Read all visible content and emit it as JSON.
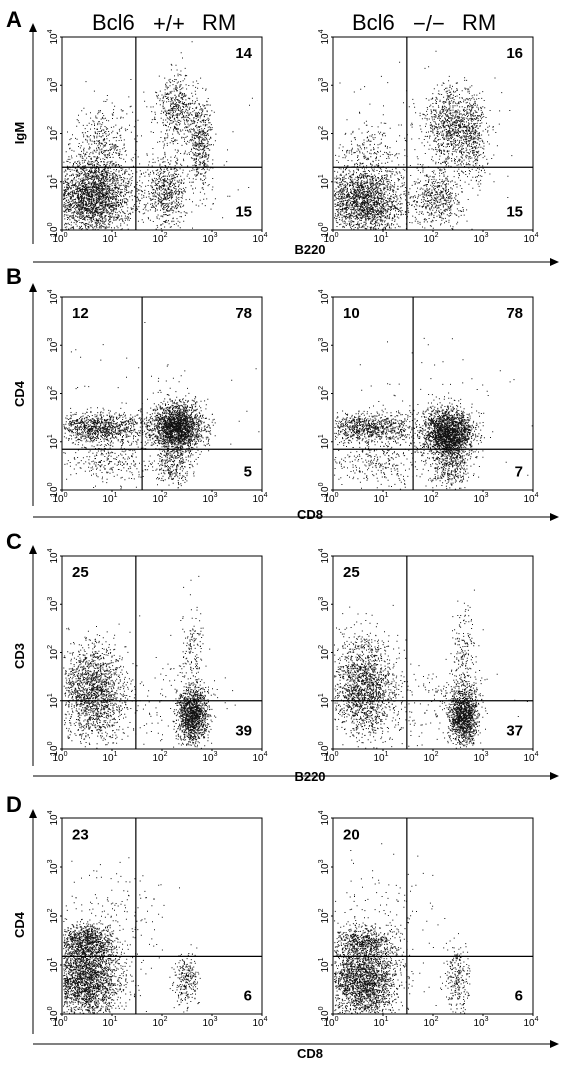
{
  "headers": {
    "left": {
      "gene": "Bcl6",
      "genotype": "+/+",
      "cell": "RM"
    },
    "right": {
      "gene": "Bcl6",
      "genotype": "−/−",
      "cell": "RM"
    }
  },
  "tick_base": "10",
  "tick_exponents": [
    "0",
    "1",
    "2",
    "3",
    "4"
  ],
  "chart_data": [
    {
      "type": "scatter",
      "panel": "A",
      "xlabel": "B220",
      "ylabel": "IgM",
      "xscale": "log",
      "yscale": "log",
      "xlim": [
        1,
        10000
      ],
      "ylim": [
        1,
        10000
      ],
      "gates": {
        "x": 30,
        "y": 20
      },
      "plots": [
        {
          "genotype": "+/+",
          "quadrants": {
            "upper_right": 14,
            "lower_right": 15
          },
          "populations": [
            {
              "cx": 4,
              "cy": 5,
              "sx": 0.4,
              "sy": 0.4,
              "n": 2600
            },
            {
              "cx": 6,
              "cy": 60,
              "sx": 0.3,
              "sy": 0.35,
              "n": 350
            },
            {
              "cx": 120,
              "cy": 6,
              "sx": 0.2,
              "sy": 0.35,
              "n": 600
            },
            {
              "cx": 200,
              "cy": 300,
              "sx": 0.2,
              "sy": 0.35,
              "n": 500
            },
            {
              "cx": 600,
              "cy": 60,
              "sx": 0.12,
              "sy": 0.45,
              "n": 450
            },
            {
              "cx": 40,
              "cy": 40,
              "sx": 1.0,
              "sy": 1.0,
              "n": 150
            }
          ]
        },
        {
          "genotype": "−/−",
          "quadrants": {
            "upper_right": 16,
            "lower_right": 15
          },
          "populations": [
            {
              "cx": 4,
              "cy": 4,
              "sx": 0.4,
              "sy": 0.35,
              "n": 2000
            },
            {
              "cx": 5,
              "cy": 40,
              "sx": 0.3,
              "sy": 0.3,
              "n": 200
            },
            {
              "cx": 120,
              "cy": 5,
              "sx": 0.25,
              "sy": 0.3,
              "n": 500
            },
            {
              "cx": 250,
              "cy": 150,
              "sx": 0.3,
              "sy": 0.4,
              "n": 900
            },
            {
              "cx": 600,
              "cy": 60,
              "sx": 0.15,
              "sy": 0.4,
              "n": 300
            },
            {
              "cx": 40,
              "cy": 40,
              "sx": 1.0,
              "sy": 1.0,
              "n": 200
            }
          ]
        }
      ]
    },
    {
      "type": "scatter",
      "panel": "B",
      "xlabel": "CD8",
      "ylabel": "CD4",
      "xscale": "log",
      "yscale": "log",
      "xlim": [
        1,
        10000
      ],
      "ylim": [
        1,
        10000
      ],
      "gates": {
        "x": 40,
        "y": 7
      },
      "plots": [
        {
          "genotype": "+/+",
          "quadrants": {
            "upper_left": 12,
            "upper_right": 78,
            "lower_right": 5
          },
          "populations": [
            {
              "cx": 200,
              "cy": 20,
              "sx": 0.25,
              "sy": 0.25,
              "n": 2200
            },
            {
              "cx": 4,
              "cy": 20,
              "sx": 0.35,
              "sy": 0.15,
              "n": 700
            },
            {
              "cx": 15,
              "cy": 20,
              "sx": 0.35,
              "sy": 0.15,
              "n": 300
            },
            {
              "cx": 150,
              "cy": 3,
              "sx": 0.2,
              "sy": 0.25,
              "n": 250
            },
            {
              "cx": 8,
              "cy": 4,
              "sx": 0.5,
              "sy": 0.25,
              "n": 300
            },
            {
              "cx": 50,
              "cy": 30,
              "sx": 1.0,
              "sy": 0.8,
              "n": 100
            }
          ]
        },
        {
          "genotype": "−/−",
          "quadrants": {
            "upper_left": 10,
            "upper_right": 78,
            "lower_right": 7
          },
          "populations": [
            {
              "cx": 200,
              "cy": 15,
              "sx": 0.25,
              "sy": 0.25,
              "n": 2200
            },
            {
              "cx": 4,
              "cy": 20,
              "sx": 0.35,
              "sy": 0.15,
              "n": 600
            },
            {
              "cx": 15,
              "cy": 20,
              "sx": 0.35,
              "sy": 0.15,
              "n": 250
            },
            {
              "cx": 200,
              "cy": 3,
              "sx": 0.2,
              "sy": 0.25,
              "n": 350
            },
            {
              "cx": 8,
              "cy": 4,
              "sx": 0.5,
              "sy": 0.25,
              "n": 300
            },
            {
              "cx": 50,
              "cy": 30,
              "sx": 1.0,
              "sy": 0.8,
              "n": 100
            }
          ]
        }
      ]
    },
    {
      "type": "scatter",
      "panel": "C",
      "xlabel": "B220",
      "ylabel": "CD3",
      "xscale": "log",
      "yscale": "log",
      "xlim": [
        1,
        10000
      ],
      "ylim": [
        1,
        10000
      ],
      "gates": {
        "x": 30,
        "y": 10
      },
      "plots": [
        {
          "genotype": "+/+",
          "quadrants": {
            "upper_left": 25,
            "lower_right": 39
          },
          "populations": [
            {
              "cx": 4,
              "cy": 15,
              "sx": 0.3,
              "sy": 0.5,
              "n": 1600
            },
            {
              "cx": 400,
              "cy": 5,
              "sx": 0.15,
              "sy": 0.3,
              "n": 1400
            },
            {
              "cx": 400,
              "cy": 100,
              "sx": 0.12,
              "sy": 0.5,
              "n": 150
            },
            {
              "cx": 30,
              "cy": 10,
              "sx": 0.8,
              "sy": 0.5,
              "n": 200
            }
          ]
        },
        {
          "genotype": "−/−",
          "quadrants": {
            "upper_left": 25,
            "lower_right": 37
          },
          "populations": [
            {
              "cx": 4,
              "cy": 20,
              "sx": 0.3,
              "sy": 0.5,
              "n": 1600
            },
            {
              "cx": 400,
              "cy": 5,
              "sx": 0.15,
              "sy": 0.3,
              "n": 1300
            },
            {
              "cx": 400,
              "cy": 80,
              "sx": 0.12,
              "sy": 0.5,
              "n": 200
            },
            {
              "cx": 30,
              "cy": 10,
              "sx": 0.8,
              "sy": 0.5,
              "n": 250
            }
          ]
        }
      ]
    },
    {
      "type": "scatter",
      "panel": "D",
      "xlabel": "CD8",
      "ylabel": "CD4",
      "xscale": "log",
      "yscale": "log",
      "xlim": [
        1,
        10000
      ],
      "ylim": [
        1,
        10000
      ],
      "gates": {
        "x": 30,
        "y": 15
      },
      "plots": [
        {
          "genotype": "+/+",
          "quadrants": {
            "upper_left": 23,
            "lower_right": 6
          },
          "populations": [
            {
              "cx": 3,
              "cy": 5,
              "sx": 0.35,
              "sy": 0.4,
              "n": 2300
            },
            {
              "cx": 3,
              "cy": 30,
              "sx": 0.3,
              "sy": 0.2,
              "n": 900
            },
            {
              "cx": 300,
              "cy": 5,
              "sx": 0.12,
              "sy": 0.3,
              "n": 250
            },
            {
              "cx": 10,
              "cy": 80,
              "sx": 0.6,
              "sy": 0.6,
              "n": 150
            }
          ]
        },
        {
          "genotype": "−/−",
          "quadrants": {
            "upper_left": 20,
            "lower_right": 6
          },
          "populations": [
            {
              "cx": 4,
              "cy": 5,
              "sx": 0.35,
              "sy": 0.4,
              "n": 2300
            },
            {
              "cx": 4,
              "cy": 30,
              "sx": 0.3,
              "sy": 0.15,
              "n": 500
            },
            {
              "cx": 300,
              "cy": 5,
              "sx": 0.12,
              "sy": 0.35,
              "n": 250
            },
            {
              "cx": 10,
              "cy": 80,
              "sx": 0.6,
              "sy": 0.6,
              "n": 150
            }
          ]
        }
      ]
    }
  ]
}
